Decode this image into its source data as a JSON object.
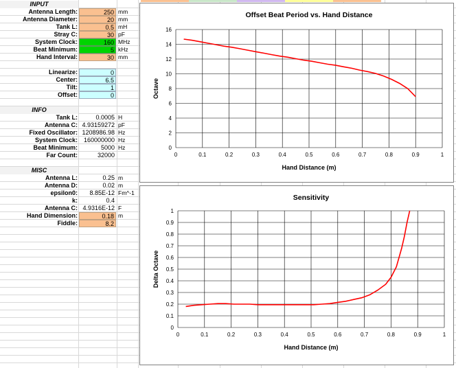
{
  "sheet": {
    "input_header": "INPUT",
    "info_header": "INFO",
    "misc_header": "MISC",
    "input_rows": [
      {
        "label": "Antenna Length:",
        "value": "250",
        "unit": "mm",
        "style": "orange"
      },
      {
        "label": "Antenna Diameter:",
        "value": "20",
        "unit": "mm",
        "style": "orange"
      },
      {
        "label": "Tank L:",
        "value": "0.5",
        "unit": "mH",
        "style": "orange"
      },
      {
        "label": "Stray C:",
        "value": "30",
        "unit": "pF",
        "style": "orange"
      },
      {
        "label": "System Clock:",
        "value": "160",
        "unit": "MHz",
        "style": "green"
      },
      {
        "label": "Beat Minimum:",
        "value": "5",
        "unit": "kHz",
        "style": "green"
      },
      {
        "label": "Hand Interval:",
        "value": "30",
        "unit": "mm",
        "style": "orange"
      }
    ],
    "tune_rows": [
      {
        "label": "Linearize:",
        "value": "0",
        "unit": "",
        "style": "cyan"
      },
      {
        "label": "Center:",
        "value": "6.5",
        "unit": "",
        "style": "cyan"
      },
      {
        "label": "Tilt:",
        "value": "1",
        "unit": "",
        "style": "cyan"
      },
      {
        "label": "Offset:",
        "value": "0",
        "unit": "",
        "style": "cyan"
      }
    ],
    "info_rows": [
      {
        "label": "Tank L:",
        "value": "0.0005",
        "unit": "H",
        "style": ""
      },
      {
        "label": "Antenna C:",
        "value": "4.93159272",
        "unit": "pF",
        "style": ""
      },
      {
        "label": "Fixed Oscillator:",
        "value": "1208986.98",
        "unit": "Hz",
        "style": ""
      },
      {
        "label": "System Clock:",
        "value": "160000000",
        "unit": "Hz",
        "style": ""
      },
      {
        "label": "Beat Minimum:",
        "value": "5000",
        "unit": "Hz",
        "style": ""
      },
      {
        "label": "Far Count:",
        "value": "32000",
        "unit": "",
        "style": ""
      }
    ],
    "misc_rows": [
      {
        "label": "Antenna L:",
        "value": "0.25",
        "unit": "m",
        "style": ""
      },
      {
        "label": "Antenna D:",
        "value": "0.02",
        "unit": "m",
        "style": ""
      },
      {
        "label": "epsilon0:",
        "value": "8.85E-12",
        "unit": "Fm^-1",
        "style": ""
      },
      {
        "label": "k:",
        "value": "0.4",
        "unit": "",
        "style": ""
      },
      {
        "label": "Antenna C:",
        "value": "4.9316E-12",
        "unit": "F",
        "style": ""
      },
      {
        "label": "Hand Dimension:",
        "value": "0.18",
        "unit": "m",
        "style": "orange"
      },
      {
        "label": "Fiddle:",
        "value": "8.2",
        "unit": "",
        "style": "orange"
      }
    ]
  },
  "colors": {
    "series": "#ff0000",
    "orange_cell": "#fac090",
    "green_cell": "#00d400",
    "cyan_cell": "#ccffff"
  },
  "chart_data": [
    {
      "type": "line",
      "title": "Offset Beat Period vs. Hand Distance",
      "xlabel": "Hand Distance (m)",
      "ylabel": "Octave",
      "xlim": [
        0,
        1
      ],
      "ylim": [
        0,
        16
      ],
      "xticks": [
        "0",
        "0.1",
        "0.2",
        "0.3",
        "0.4",
        "0.5",
        "0.6",
        "0.7",
        "0.8",
        "0.9",
        "1"
      ],
      "yticks": [
        "0",
        "2",
        "4",
        "6",
        "8",
        "10",
        "12",
        "14",
        "16"
      ],
      "grid": true,
      "series": [
        {
          "x": [
            0.03,
            0.06,
            0.09,
            0.12,
            0.15,
            0.18,
            0.21,
            0.24,
            0.27,
            0.3,
            0.33,
            0.36,
            0.39,
            0.42,
            0.45,
            0.48,
            0.51,
            0.54,
            0.57,
            0.6,
            0.63,
            0.66,
            0.69,
            0.72,
            0.75,
            0.78,
            0.81,
            0.84,
            0.87,
            0.9
          ],
          "y": [
            14.7,
            14.55,
            14.35,
            14.15,
            13.95,
            13.75,
            13.6,
            13.4,
            13.2,
            13.0,
            12.8,
            12.6,
            12.4,
            12.25,
            12.05,
            11.85,
            11.7,
            11.5,
            11.3,
            11.15,
            10.95,
            10.75,
            10.5,
            10.3,
            10.05,
            9.7,
            9.25,
            8.7,
            8.0,
            6.9
          ]
        }
      ]
    },
    {
      "type": "line",
      "title": "Sensitivity",
      "xlabel": "Hand Distance (m)",
      "ylabel": "Delta Octave",
      "xlim": [
        0,
        1
      ],
      "ylim": [
        0,
        1
      ],
      "xticks": [
        "0",
        "0.1",
        "0.2",
        "0.3",
        "0.4",
        "0.5",
        "0.6",
        "0.7",
        "0.8",
        "0.9",
        "1"
      ],
      "yticks": [
        "0",
        "0.1",
        "0.2",
        "0.3",
        "0.4",
        "0.5",
        "0.6",
        "0.7",
        "0.8",
        "0.9",
        "1"
      ],
      "grid": true,
      "series": [
        {
          "x": [
            0.03,
            0.06,
            0.09,
            0.12,
            0.15,
            0.18,
            0.21,
            0.24,
            0.27,
            0.3,
            0.33,
            0.36,
            0.39,
            0.42,
            0.45,
            0.48,
            0.51,
            0.54,
            0.57,
            0.6,
            0.63,
            0.66,
            0.69,
            0.72,
            0.75,
            0.78,
            0.8,
            0.82,
            0.84,
            0.85,
            0.86,
            0.87
          ],
          "y": [
            0.18,
            0.19,
            0.195,
            0.2,
            0.205,
            0.205,
            0.2,
            0.2,
            0.2,
            0.195,
            0.195,
            0.195,
            0.195,
            0.195,
            0.195,
            0.195,
            0.195,
            0.2,
            0.205,
            0.215,
            0.225,
            0.24,
            0.255,
            0.28,
            0.32,
            0.37,
            0.43,
            0.52,
            0.68,
            0.78,
            0.9,
            1.0
          ]
        }
      ]
    }
  ]
}
